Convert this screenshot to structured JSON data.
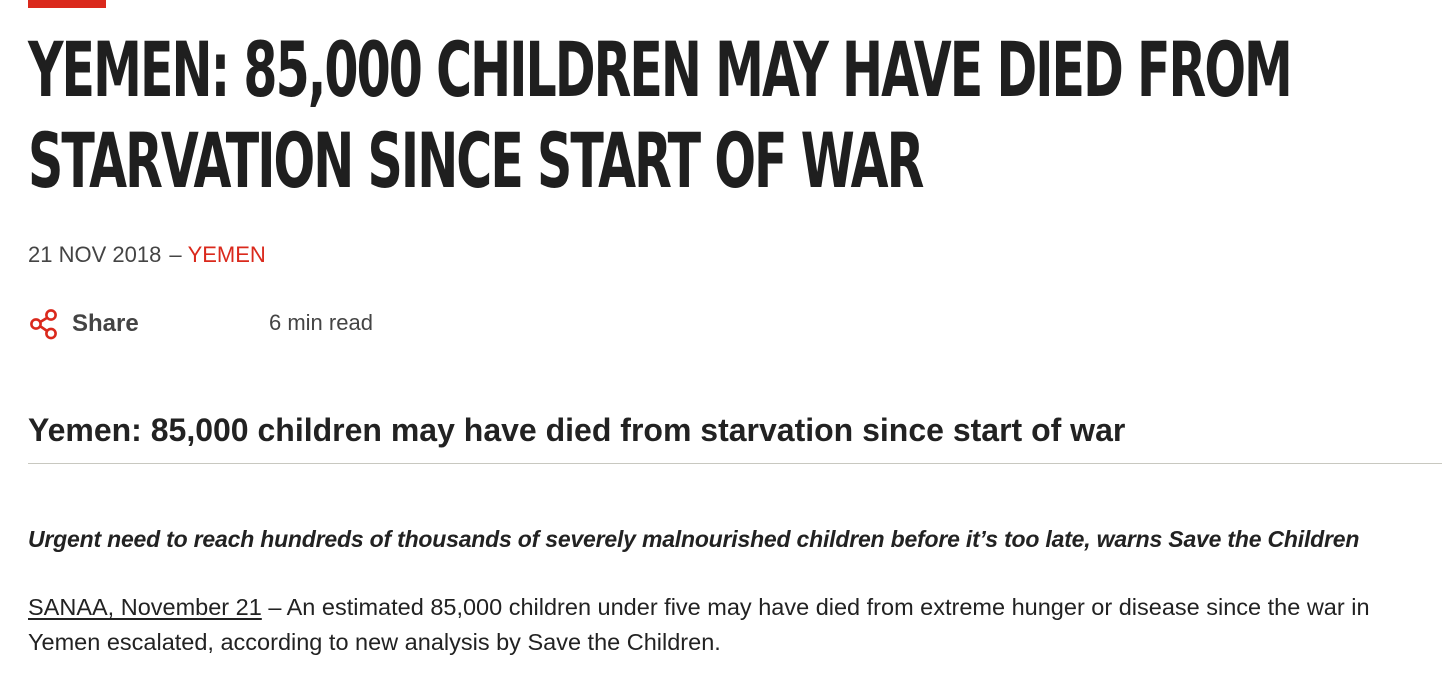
{
  "article": {
    "headline": "YEMEN: 85,000 CHILDREN MAY HAVE DIED FROM STARVATION SINCE START OF WAR",
    "date": "21 NOV 2018",
    "separator": "–",
    "category": "YEMEN",
    "share_label": "Share",
    "read_time": "6 min read",
    "subheadline": "Yemen: 85,000 children may have died from starvation since start of war",
    "standfirst": "Urgent need to reach hundreds of thousands of severely malnourished children before it’s too late, warns Save the Children",
    "dateline": "SANAA, November 21",
    "body_text": " – An estimated 85,000 children under five may have died from extreme hunger or disease since the war in Yemen escalated, according to new analysis by Save the Children."
  },
  "icons": {
    "share": "share-icon"
  },
  "colors": {
    "accent": "#da291c",
    "text": "#222222",
    "muted": "#444444",
    "divider": "#c8c8c0"
  }
}
